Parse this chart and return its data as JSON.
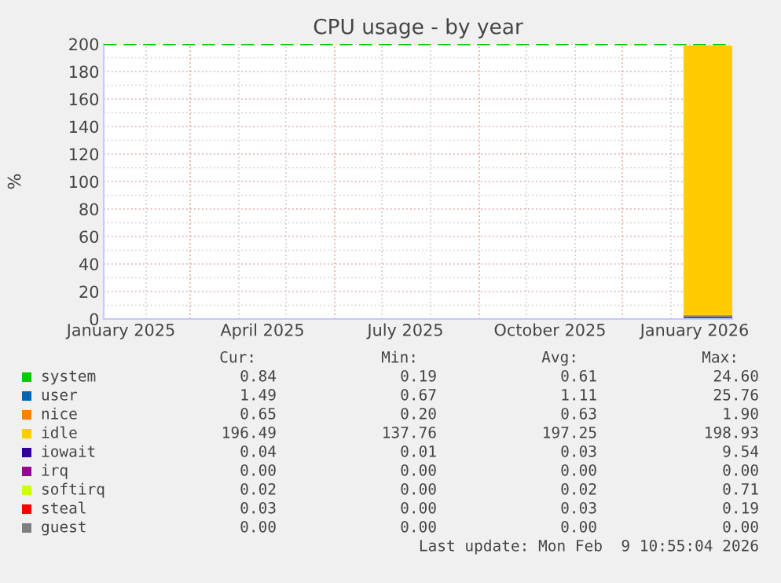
{
  "chart_data": {
    "type": "area",
    "stacked": true,
    "title": "CPU usage - by year",
    "ylabel": "%",
    "x": [
      "2026-01-09",
      "2026-01-20",
      "2026-02-01",
      "2026-02-09"
    ],
    "series": [
      {
        "name": "system",
        "color": "#00cc00",
        "values": [
          null,
          null,
          null,
          null
        ]
      },
      {
        "name": "user",
        "color": "#0066b3",
        "values": [
          2,
          2,
          2,
          2
        ]
      },
      {
        "name": "nice",
        "color": "#ff8000",
        "values": [
          1,
          1,
          1,
          1
        ]
      },
      {
        "name": "idle",
        "color": "#ffcc00",
        "values": [
          196,
          196,
          196,
          196
        ]
      },
      {
        "name": "iowait",
        "color": "#330099",
        "values": [
          null,
          null,
          null,
          null
        ]
      },
      {
        "name": "irq",
        "color": "#990099",
        "values": [
          null,
          null,
          null,
          null
        ]
      },
      {
        "name": "softirq",
        "color": "#ccff00",
        "values": [
          null,
          null,
          null,
          null
        ]
      },
      {
        "name": "steal",
        "color": "#ff0000",
        "values": [
          null,
          null,
          null,
          null
        ]
      },
      {
        "name": "guest",
        "color": "#808080",
        "values": [
          null,
          null,
          null,
          null
        ]
      }
    ],
    "xlim": [
      "2025-01-05",
      "2026-02-09"
    ],
    "xticks": [
      {
        "value": "2025-01-16",
        "label": "January 2025"
      },
      {
        "value": "2025-04-16",
        "label": "April 2025"
      },
      {
        "value": "2025-07-16",
        "label": "July 2025"
      },
      {
        "value": "2025-10-16",
        "label": "October 2025"
      },
      {
        "value": "2026-01-16",
        "label": "January 2026"
      }
    ],
    "ylim": [
      0,
      200
    ],
    "yticks": [
      0,
      20,
      40,
      60,
      80,
      100,
      120,
      140,
      160,
      180,
      200
    ],
    "grid": true,
    "legend": "bottom",
    "ref_lines": [
      {
        "axis": "y",
        "value": 200,
        "color": "#00cc00",
        "line_style": "dashed"
      }
    ],
    "annotations": [
      "Cur:",
      "Min:",
      "Avg:",
      "Max:",
      "0.84",
      "0.19",
      "0.61",
      "24.60",
      "1.49",
      "0.67",
      "1.11",
      "25.76",
      "0.65",
      "0.20",
      "0.63",
      "1.90",
      "196.49",
      "137.76",
      "197.25",
      "198.93",
      "0.04",
      "0.01",
      "0.03",
      "9.54",
      "0.00",
      "0.00",
      "0.00",
      "0.00",
      "0.02",
      "0.00",
      "0.02",
      "0.71",
      "0.03",
      "0.00",
      "0.03",
      "0.19",
      "0.00",
      "0.00",
      "0.00",
      "0.00",
      "Last update: Mon Feb  9 10:55:04 2026"
    ]
  }
}
